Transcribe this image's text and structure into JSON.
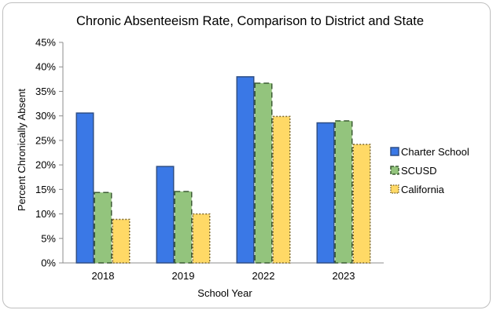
{
  "chart_data": {
    "type": "bar",
    "title": "Chronic Absenteeism Rate, Comparison to District and State",
    "xlabel": "School Year",
    "ylabel": "Percent Chronically Absent",
    "categories": [
      "2018",
      "2019",
      "2022",
      "2023"
    ],
    "ylim": [
      0,
      45
    ],
    "ytick_step": 5,
    "ytick_suffix": "%",
    "grid": false,
    "legend_position": "right",
    "series": [
      {
        "name": "Charter School",
        "values": [
          30.7,
          19.8,
          38.1,
          28.7
        ],
        "color": "#3a78e6",
        "border": "#2f4f86",
        "border_style": "solid"
      },
      {
        "name": "SCUSD",
        "values": [
          14.5,
          14.7,
          36.8,
          29.1
        ],
        "color": "#93c47d",
        "border": "#3d5c35",
        "border_style": "dashed"
      },
      {
        "name": "California",
        "values": [
          9.0,
          10.1,
          30.0,
          24.3
        ],
        "color": "#ffd966",
        "border": "#7f6a2e",
        "border_style": "dotted"
      }
    ]
  }
}
